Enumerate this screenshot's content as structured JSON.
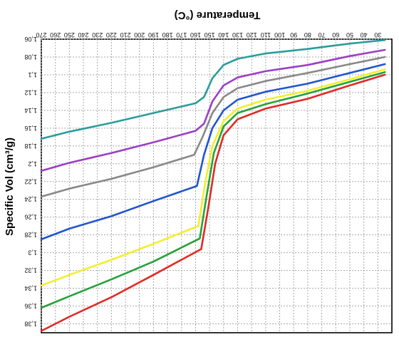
{
  "chart_data": {
    "type": "line",
    "orientation": "mirrored horizontally and vertically",
    "xlabel": "Temperature (°C)",
    "ylabel": "Specific Vol (cm³/g)",
    "xlim": [
      20,
      270
    ],
    "ylim": [
      1.06,
      1.39
    ],
    "x_ticks": [
      30,
      40,
      50,
      60,
      70,
      80,
      90,
      100,
      110,
      120,
      130,
      140,
      150,
      160,
      170,
      180,
      190,
      200,
      210,
      220,
      230,
      240,
      250,
      260,
      270
    ],
    "x_tick_labels": [
      "30",
      "40",
      "50",
      "60",
      "70",
      "80",
      "90",
      "100",
      "110",
      "120",
      "130",
      "140",
      "150",
      "160",
      "170",
      "180",
      "190",
      "200",
      "210",
      "220",
      "230",
      "240",
      "250",
      "260",
      "270"
    ],
    "y_ticks": [
      1.06,
      1.08,
      1.1,
      1.12,
      1.14,
      1.16,
      1.18,
      1.2,
      1.22,
      1.24,
      1.26,
      1.28,
      1.3,
      1.32,
      1.34,
      1.36,
      1.38
    ],
    "y_tick_labels": [
      "1,06",
      "1,08",
      "1,1",
      "1,12",
      "1,14",
      "1,16",
      "1,18",
      "1,2",
      "1,22",
      "1,24",
      "1,26",
      "1,28",
      "1,3",
      "1,32",
      "1,34",
      "1,36",
      "1,38"
    ],
    "grid": true,
    "series": [
      {
        "color": "#2a9d9a",
        "x": [
          25,
          50,
          80,
          110,
          130,
          140,
          148,
          154,
          160,
          190,
          220,
          250,
          272
        ],
        "y": [
          1.061,
          1.065,
          1.071,
          1.076,
          1.082,
          1.089,
          1.104,
          1.125,
          1.132,
          1.143,
          1.154,
          1.164,
          1.172
        ]
      },
      {
        "color": "#9b3fc4",
        "x": [
          25,
          50,
          80,
          110,
          130,
          140,
          148,
          154,
          160,
          190,
          220,
          250,
          272
        ],
        "y": [
          1.072,
          1.079,
          1.089,
          1.096,
          1.103,
          1.112,
          1.13,
          1.155,
          1.163,
          1.176,
          1.188,
          1.199,
          1.208
        ]
      },
      {
        "color": "#888888",
        "x": [
          25,
          50,
          80,
          110,
          130,
          140,
          148,
          155,
          161,
          190,
          220,
          250,
          272
        ],
        "y": [
          1.08,
          1.088,
          1.098,
          1.107,
          1.115,
          1.125,
          1.143,
          1.17,
          1.19,
          1.204,
          1.217,
          1.228,
          1.237
        ]
      },
      {
        "color": "#2255cc",
        "x": [
          25,
          50,
          80,
          110,
          130,
          140,
          148,
          154,
          159,
          190,
          220,
          250,
          272
        ],
        "y": [
          1.088,
          1.098,
          1.11,
          1.119,
          1.128,
          1.14,
          1.16,
          1.19,
          1.225,
          1.242,
          1.259,
          1.273,
          1.285
        ]
      },
      {
        "color": "#f2ef2a",
        "x": [
          25,
          50,
          80,
          110,
          130,
          140,
          148,
          153,
          158,
          190,
          220,
          250,
          272
        ],
        "y": [
          1.094,
          1.105,
          1.118,
          1.128,
          1.138,
          1.152,
          1.18,
          1.22,
          1.27,
          1.29,
          1.308,
          1.325,
          1.337
        ]
      },
      {
        "color": "#28a03a",
        "x": [
          25,
          50,
          80,
          110,
          130,
          140,
          147,
          152,
          157,
          190,
          220,
          250,
          272
        ],
        "y": [
          1.097,
          1.108,
          1.121,
          1.133,
          1.143,
          1.158,
          1.188,
          1.235,
          1.284,
          1.31,
          1.33,
          1.349,
          1.362
        ]
      },
      {
        "color": "#e02a25",
        "x": [
          25,
          50,
          80,
          110,
          130,
          140,
          146,
          151,
          156,
          190,
          220,
          250,
          272
        ],
        "y": [
          1.1,
          1.112,
          1.127,
          1.138,
          1.15,
          1.168,
          1.2,
          1.25,
          1.296,
          1.325,
          1.35,
          1.372,
          1.388
        ]
      }
    ]
  }
}
